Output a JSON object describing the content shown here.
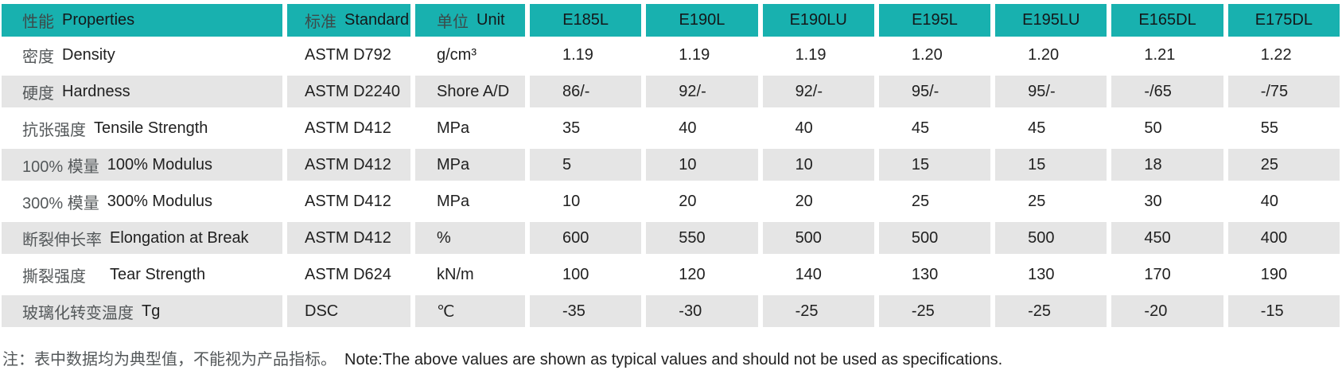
{
  "table": {
    "header": {
      "properties": {
        "zh": "性能",
        "en": "Properties"
      },
      "standard": {
        "zh": "标准",
        "en": "Standard"
      },
      "unit": {
        "zh": "单位",
        "en": "Unit"
      },
      "products": [
        "E185L",
        "E190L",
        "E190LU",
        "E195L",
        "E195LU",
        "E165DL",
        "E175DL"
      ]
    },
    "rows": [
      {
        "zh": "密度",
        "en": "Density",
        "standard": "ASTM D792",
        "unit": "g/cm³",
        "values": [
          "1.19",
          "1.19",
          "1.19",
          "1.20",
          "1.20",
          "1.21",
          "1.22"
        ]
      },
      {
        "zh": "硬度",
        "en": "Hardness",
        "standard": "ASTM D2240",
        "unit": "Shore A/D",
        "values": [
          "86/-",
          "92/-",
          "92/-",
          "95/-",
          "95/-",
          "-/65",
          "-/75"
        ]
      },
      {
        "zh": "抗张强度",
        "en": "Tensile Strength",
        "standard": "ASTM D412",
        "unit": "MPa",
        "values": [
          "35",
          "40",
          "40",
          "45",
          "45",
          "50",
          "55"
        ]
      },
      {
        "zh": "100% 模量",
        "en": "100% Modulus",
        "standard": "ASTM D412",
        "unit": "MPa",
        "values": [
          "5",
          "10",
          "10",
          "15",
          "15",
          "18",
          "25"
        ]
      },
      {
        "zh": "300% 模量",
        "en": "300% Modulus",
        "standard": "ASTM D412",
        "unit": "MPa",
        "values": [
          "10",
          "20",
          "20",
          "25",
          "25",
          "30",
          "40"
        ]
      },
      {
        "zh": "断裂伸长率",
        "en": "Elongation at Break",
        "standard": "ASTM D412",
        "unit": "%",
        "values": [
          "600",
          "550",
          "500",
          "500",
          "500",
          "450",
          "400"
        ]
      },
      {
        "zh": "撕裂强度　",
        "en": "Tear Strength",
        "standard": "ASTM D624",
        "unit": "kN/m",
        "values": [
          "100",
          "120",
          "140",
          "130",
          "130",
          "170",
          "190"
        ]
      },
      {
        "zh": "玻璃化转变温度",
        "en": "Tg",
        "standard": "DSC",
        "unit": "℃",
        "values": [
          "-35",
          "-30",
          "-25",
          "-25",
          "-25",
          "-20",
          "-15"
        ]
      }
    ]
  },
  "note": {
    "zh": "注：表中数据均为典型值，不能视为产品指标。",
    "en": "Note:The above values are shown as typical values and should not be used as specifications."
  },
  "colors": {
    "header_bg": "#18b1af",
    "stripe_bg": "#e5e5e5",
    "text_dark": "#212121",
    "text_zh": "#54585a"
  }
}
